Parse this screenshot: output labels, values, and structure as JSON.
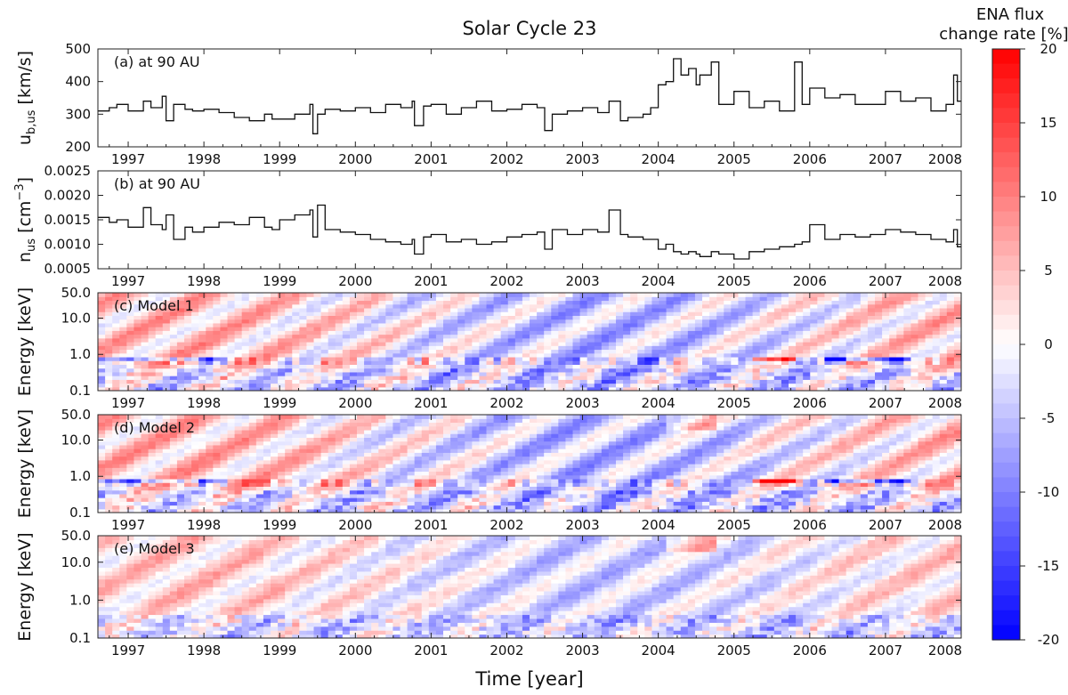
{
  "chart_data": {
    "type": "multi-panel",
    "title": "Solar Cycle 23",
    "xlabel": "Time [year]",
    "xlim": [
      1996.6,
      2008.0
    ],
    "xticks": [
      "1997",
      "1998",
      "1999",
      "2000",
      "2001",
      "2002",
      "2003",
      "2004",
      "2005",
      "2006",
      "2007",
      "2008"
    ],
    "colorbar": {
      "title_line1": "ENA flux",
      "title_line2": "change rate [%]",
      "range": [
        -20,
        20
      ],
      "ticks": [
        "20",
        "15",
        "10",
        "5",
        "0",
        "-5",
        "-10",
        "-15",
        "-20"
      ],
      "colormap": "blue-white-red"
    },
    "panels": [
      {
        "type": "line",
        "label": "(a) at 90 AU",
        "ylabel_main": "u",
        "ylabel_sub": "b,us",
        "ylabel_unit": " [km/s]",
        "ylim": [
          200,
          500
        ],
        "yticks": [
          "500",
          "400",
          "300",
          "200"
        ],
        "series": [
          {
            "name": "u_b,us",
            "style": "step",
            "x": [
              1996.6,
              1996.75,
              1996.85,
              1997.0,
              1997.2,
              1997.3,
              1997.45,
              1997.5,
              1997.6,
              1997.75,
              1997.85,
              1998.0,
              1998.2,
              1998.4,
              1998.6,
              1998.8,
              1998.9,
              1999.0,
              1999.2,
              1999.4,
              1999.44,
              1999.5,
              1999.6,
              1999.8,
              2000.0,
              2000.2,
              2000.4,
              2000.6,
              2000.75,
              2000.78,
              2000.9,
              2001.0,
              2001.2,
              2001.4,
              2001.6,
              2001.8,
              2002.0,
              2002.2,
              2002.4,
              2002.5,
              2002.6,
              2002.8,
              2003.0,
              2003.2,
              2003.35,
              2003.5,
              2003.6,
              2003.8,
              2003.9,
              2004.0,
              2004.1,
              2004.2,
              2004.3,
              2004.4,
              2004.5,
              2004.55,
              2004.7,
              2004.8,
              2005.0,
              2005.2,
              2005.4,
              2005.6,
              2005.8,
              2005.9,
              2006.0,
              2006.2,
              2006.4,
              2006.6,
              2006.8,
              2007.0,
              2007.2,
              2007.4,
              2007.6,
              2007.8,
              2007.9,
              2007.95
            ],
            "values": [
              310,
              320,
              330,
              310,
              340,
              320,
              355,
              280,
              330,
              315,
              310,
              315,
              305,
              290,
              280,
              300,
              285,
              285,
              300,
              330,
              240,
              300,
              315,
              310,
              320,
              305,
              330,
              320,
              340,
              265,
              325,
              330,
              300,
              320,
              340,
              310,
              315,
              330,
              320,
              250,
              300,
              310,
              320,
              305,
              340,
              280,
              290,
              300,
              320,
              390,
              400,
              470,
              420,
              440,
              390,
              420,
              460,
              330,
              370,
              320,
              340,
              310,
              460,
              330,
              380,
              350,
              360,
              330,
              330,
              370,
              340,
              350,
              310,
              330,
              420,
              340
            ]
          }
        ]
      },
      {
        "type": "line",
        "label": "(b) at 90 AU",
        "ylabel_main": "n",
        "ylabel_sub": "us",
        "ylabel_unit": " [cm",
        "ylabel_sup": "−3",
        "ylabel_close": "]",
        "ylim": [
          0.0005,
          0.0025
        ],
        "yticks": [
          "0.0025",
          "0.0020",
          "0.0015",
          "0.0010",
          "0.0005"
        ],
        "series": [
          {
            "name": "n_us",
            "style": "step",
            "x": [
              1996.6,
              1996.75,
              1996.85,
              1997.0,
              1997.2,
              1997.3,
              1997.45,
              1997.5,
              1997.6,
              1997.75,
              1997.85,
              1998.0,
              1998.2,
              1998.4,
              1998.6,
              1998.8,
              1998.9,
              1999.0,
              1999.2,
              1999.4,
              1999.44,
              1999.5,
              1999.6,
              1999.8,
              2000.0,
              2000.2,
              2000.4,
              2000.6,
              2000.75,
              2000.78,
              2000.9,
              2001.0,
              2001.2,
              2001.4,
              2001.6,
              2001.8,
              2002.0,
              2002.2,
              2002.4,
              2002.5,
              2002.6,
              2002.8,
              2003.0,
              2003.2,
              2003.35,
              2003.5,
              2003.6,
              2003.8,
              2003.9,
              2004.0,
              2004.1,
              2004.2,
              2004.3,
              2004.4,
              2004.5,
              2004.55,
              2004.7,
              2004.8,
              2005.0,
              2005.2,
              2005.4,
              2005.6,
              2005.8,
              2005.9,
              2006.0,
              2006.2,
              2006.4,
              2006.6,
              2006.8,
              2007.0,
              2007.2,
              2007.4,
              2007.6,
              2007.8,
              2007.9,
              2007.95
            ],
            "values": [
              0.00155,
              0.00145,
              0.0015,
              0.00135,
              0.00175,
              0.0014,
              0.0013,
              0.0016,
              0.0011,
              0.00135,
              0.00125,
              0.00135,
              0.00145,
              0.0014,
              0.00155,
              0.00135,
              0.0013,
              0.0015,
              0.0016,
              0.0017,
              0.00115,
              0.0018,
              0.0013,
              0.00125,
              0.0012,
              0.0011,
              0.00105,
              0.001,
              0.0011,
              0.0008,
              0.00115,
              0.0012,
              0.00105,
              0.0011,
              0.001,
              0.00105,
              0.00115,
              0.0012,
              0.00125,
              0.0009,
              0.0013,
              0.0012,
              0.0013,
              0.00125,
              0.0017,
              0.0012,
              0.00115,
              0.0011,
              0.0011,
              0.0009,
              0.001,
              0.00085,
              0.0008,
              0.00085,
              0.0008,
              0.00075,
              0.00085,
              0.0008,
              0.0007,
              0.00085,
              0.0009,
              0.00095,
              0.001,
              0.00105,
              0.0014,
              0.0011,
              0.0012,
              0.00115,
              0.0012,
              0.0013,
              0.00125,
              0.0012,
              0.0011,
              0.00105,
              0.0013,
              0.00095
            ]
          }
        ]
      },
      {
        "type": "heatmap",
        "label": "(c) Model 1",
        "ylabel": "Energy [keV]",
        "yscale": "log",
        "ylim": [
          0.1,
          50.0
        ],
        "yticks": [
          "50.0",
          "10.0",
          "1.0",
          "0.1"
        ]
      },
      {
        "type": "heatmap",
        "label": "(d) Model 2",
        "ylabel": "Energy [keV]",
        "yscale": "log",
        "ylim": [
          0.1,
          50.0
        ],
        "yticks": [
          "50.0",
          "10.0",
          "1.0",
          "0.1"
        ]
      },
      {
        "type": "heatmap",
        "label": "(e) Model 3",
        "ylabel": "Energy [keV]",
        "yscale": "log",
        "ylim": [
          0.1,
          50.0
        ],
        "yticks": [
          "50.0",
          "10.0",
          "1.0",
          "0.1"
        ]
      }
    ]
  }
}
